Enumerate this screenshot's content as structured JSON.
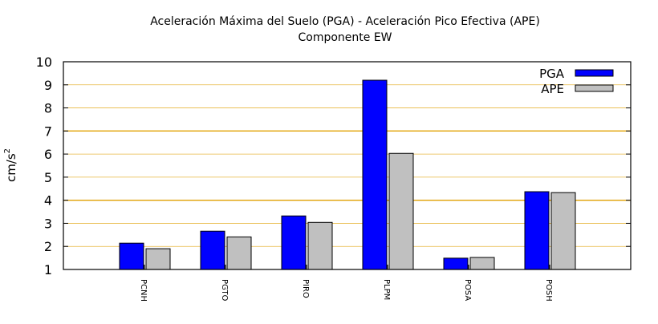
{
  "chart_data": {
    "type": "bar",
    "title": "Aceleración Máxima del Suelo (PGA) -  Aceleración Pico Efectiva (APE)",
    "subtitle": "Componente EW",
    "xlabel": "",
    "ylabel": "cm/s",
    "ylabel_superscript": "2",
    "categories": [
      "PCNH",
      "PGTO",
      "PIRO",
      "PLPM",
      "POSA",
      "POSH"
    ],
    "series": [
      {
        "name": "PGA",
        "color": "#0000ff",
        "values": [
          2.14,
          2.66,
          3.32,
          9.2,
          1.49,
          4.37
        ]
      },
      {
        "name": "APE",
        "color": "#c0c0c0",
        "values": [
          1.9,
          2.41,
          3.04,
          6.03,
          1.52,
          4.33
        ]
      }
    ],
    "ylim": [
      1,
      10
    ],
    "yticks": [
      "1",
      "2",
      "3",
      "4",
      "5",
      "6",
      "7",
      "8",
      "9",
      "10"
    ],
    "xlim": [
      -1,
      6
    ],
    "grid": true,
    "grid_color": "#e0a000",
    "highlight_gridlines": [
      4,
      7
    ],
    "legend_position": "top-right"
  }
}
